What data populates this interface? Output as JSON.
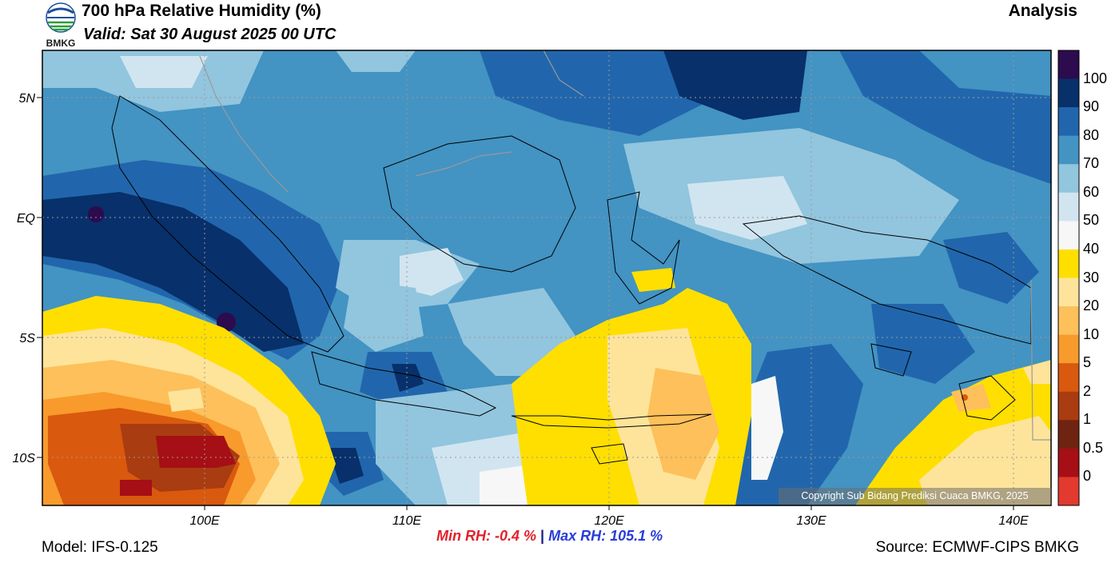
{
  "header": {
    "title": "700 hPa Relative Humidity (%)",
    "valid": "Valid: Sat 30 August 2025 00 UTC",
    "mode": "Analysis",
    "logo_text": "BMKG"
  },
  "axes": {
    "lat_labels": [
      "5N",
      "EQ",
      "5S",
      "10S"
    ],
    "lon_labels": [
      "100E",
      "110E",
      "120E",
      "130E",
      "140E"
    ]
  },
  "stats": {
    "min": "Min RH:  -0.4 %",
    "separator": "|",
    "max": "Max RH: 105.1 %"
  },
  "footer": {
    "model": "Model: IFS-0.125",
    "source": "Source: ECMWF-CIPS BMKG",
    "copyright": "Copyright Sub Bidang Prediksi Cuaca BMKG, 2025"
  },
  "colorbar": {
    "labels": [
      "100",
      "90",
      "80",
      "70",
      "60",
      "50",
      "40",
      "30",
      "20",
      "10",
      "5",
      "2",
      "1",
      "0.5",
      "0"
    ],
    "colors": [
      "#2c0b4e",
      "#08306b",
      "#2166ac",
      "#4393c3",
      "#92c5de",
      "#d1e5f0",
      "#f7f7f7",
      "#ffdf00",
      "#fee49b",
      "#fdc05a",
      "#f89a2c",
      "#d9590f",
      "#a93c10",
      "#6e2410",
      "#a50f15",
      "#e23a2e"
    ]
  }
}
